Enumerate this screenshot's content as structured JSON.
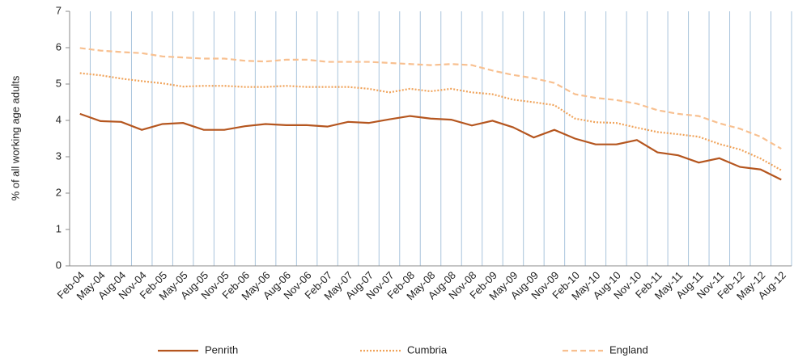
{
  "chart_data": {
    "type": "line",
    "y_label": "% of all working age adults",
    "categories": [
      "Feb-04",
      "May-04",
      "Aug-04",
      "Nov-04",
      "Feb-05",
      "May-05",
      "Aug-05",
      "Nov-05",
      "Feb-06",
      "May-06",
      "Aug-06",
      "Nov-06",
      "Feb-07",
      "May-07",
      "Aug-07",
      "Nov-07",
      "Feb-08",
      "May-08",
      "Aug-08",
      "Nov-08",
      "Feb-09",
      "May-09",
      "Aug-09",
      "Nov-09",
      "Feb-10",
      "May-10",
      "Aug-10",
      "Nov-10",
      "Feb-11",
      "May-11",
      "Aug-11",
      "Nov-11",
      "Feb-12",
      "May-12",
      "Aug-12"
    ],
    "series": [
      {
        "name": "Penrith",
        "color": "#b5561f",
        "line_style": "solid",
        "values": [
          4.18,
          3.98,
          3.96,
          3.74,
          3.9,
          3.93,
          3.74,
          3.74,
          3.84,
          3.9,
          3.87,
          3.87,
          3.83,
          3.96,
          3.93,
          4.03,
          4.12,
          4.05,
          4.02,
          3.86,
          3.99,
          3.81,
          3.53,
          3.74,
          3.5,
          3.34,
          3.34,
          3.46,
          3.12,
          3.04,
          2.84,
          2.96,
          2.72,
          2.65,
          2.37
        ]
      },
      {
        "name": "Cumbria",
        "color": "#f0a35a",
        "line_style": "dotted",
        "values": [
          5.3,
          5.24,
          5.15,
          5.08,
          5.02,
          4.93,
          4.95,
          4.95,
          4.92,
          4.92,
          4.95,
          4.92,
          4.92,
          4.92,
          4.87,
          4.77,
          4.87,
          4.8,
          4.87,
          4.77,
          4.72,
          4.57,
          4.5,
          4.42,
          4.05,
          3.95,
          3.93,
          3.8,
          3.68,
          3.62,
          3.55,
          3.35,
          3.2,
          2.95,
          2.63
        ]
      },
      {
        "name": "England",
        "color": "#f8c090",
        "line_style": "dashed",
        "values": [
          5.99,
          5.92,
          5.88,
          5.85,
          5.76,
          5.73,
          5.7,
          5.7,
          5.64,
          5.62,
          5.67,
          5.67,
          5.61,
          5.61,
          5.61,
          5.58,
          5.55,
          5.52,
          5.55,
          5.52,
          5.37,
          5.25,
          5.16,
          5.03,
          4.72,
          4.62,
          4.56,
          4.46,
          4.28,
          4.18,
          4.12,
          3.92,
          3.77,
          3.55,
          3.22
        ]
      }
    ],
    "ylim": [
      0,
      7
    ],
    "yticks": [
      0,
      1,
      2,
      3,
      4,
      5,
      6,
      7
    ],
    "category_separators": true,
    "legend": "bottom"
  }
}
